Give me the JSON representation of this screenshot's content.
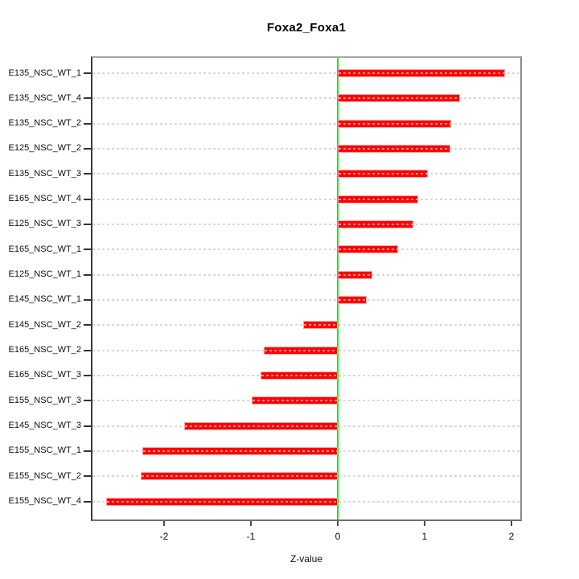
{
  "title": "Foxa2_Foxa1",
  "xaxis": {
    "label": "Z-value",
    "ticks": [
      "-2",
      "-1",
      "0",
      "1",
      "2"
    ],
    "tick_values": [
      -2,
      -1,
      0,
      1,
      2
    ]
  },
  "colors": {
    "bar_fill": "#fe0000",
    "bar_border": "#ffa0a0",
    "zero_line": "#00ee00",
    "gridline": "#d9d9d9",
    "box_border": "#808080",
    "background": "#ffffff",
    "text": "#000000"
  },
  "chart_data": {
    "type": "bar",
    "orientation": "horizontal",
    "title": "Foxa2_Foxa1",
    "xlabel": "Z-value",
    "ylabel": "",
    "xlim": [
      -2.84,
      2.12
    ],
    "grid": "dashed horizontal gridline per category",
    "zero_reference_line": true,
    "legend": "none",
    "categories": [
      "E135_NSC_WT_1",
      "E135_NSC_WT_4",
      "E135_NSC_WT_2",
      "E125_NSC_WT_2",
      "E135_NSC_WT_3",
      "E165_NSC_WT_4",
      "E125_NSC_WT_3",
      "E165_NSC_WT_1",
      "E125_NSC_WT_1",
      "E145_NSC_WT_1",
      "E145_NSC_WT_2",
      "E165_NSC_WT_2",
      "E165_NSC_WT_3",
      "E155_NSC_WT_3",
      "E145_NSC_WT_3",
      "E155_NSC_WT_1",
      "E155_NSC_WT_2",
      "E155_NSC_WT_4"
    ],
    "values": [
      1.93,
      1.41,
      1.31,
      1.3,
      1.04,
      0.93,
      0.87,
      0.69,
      0.4,
      0.33,
      -0.4,
      -0.85,
      -0.89,
      -0.99,
      -1.77,
      -2.25,
      -2.27,
      -2.67
    ]
  }
}
